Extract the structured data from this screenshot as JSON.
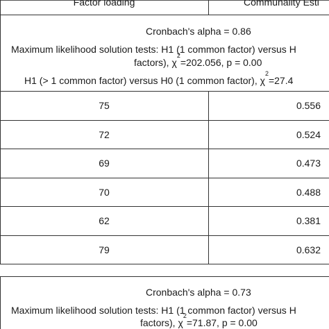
{
  "header": {
    "col1": "Factor loading",
    "col2": "Communality Esti"
  },
  "block1": {
    "alpha": "Cronbach's alpha = 0.86",
    "ml_line1": "Maximum likelihood solution tests: H1 (1 common factor) versus H",
    "ml_line2_pre": "factors), χ",
    "ml_line2_sup": "2",
    "ml_line2_post": "=202.056, p = 0.00",
    "h1_pre": "H1 (> 1 common factor) versus H0 (1 common factor), χ",
    "h1_sup": "2",
    "h1_post": "=27.4"
  },
  "rows": [
    {
      "loading": "75",
      "communality": "0.556"
    },
    {
      "loading": "72",
      "communality": "0.524"
    },
    {
      "loading": "69",
      "communality": "0.473"
    },
    {
      "loading": "70",
      "communality": "0.488"
    },
    {
      "loading": "62",
      "communality": "0.381"
    },
    {
      "loading": "79",
      "communality": "0.632"
    }
  ],
  "block2": {
    "alpha": "Cronbach's alpha = 0.73",
    "ml_line1": "Maximum likelihood solution tests: H1 (1 common factor) versus H",
    "ml_line2_pre": "factors), χ",
    "ml_line2_sup": "2",
    "ml_line2_post": "=71.87, p = 0.00"
  }
}
